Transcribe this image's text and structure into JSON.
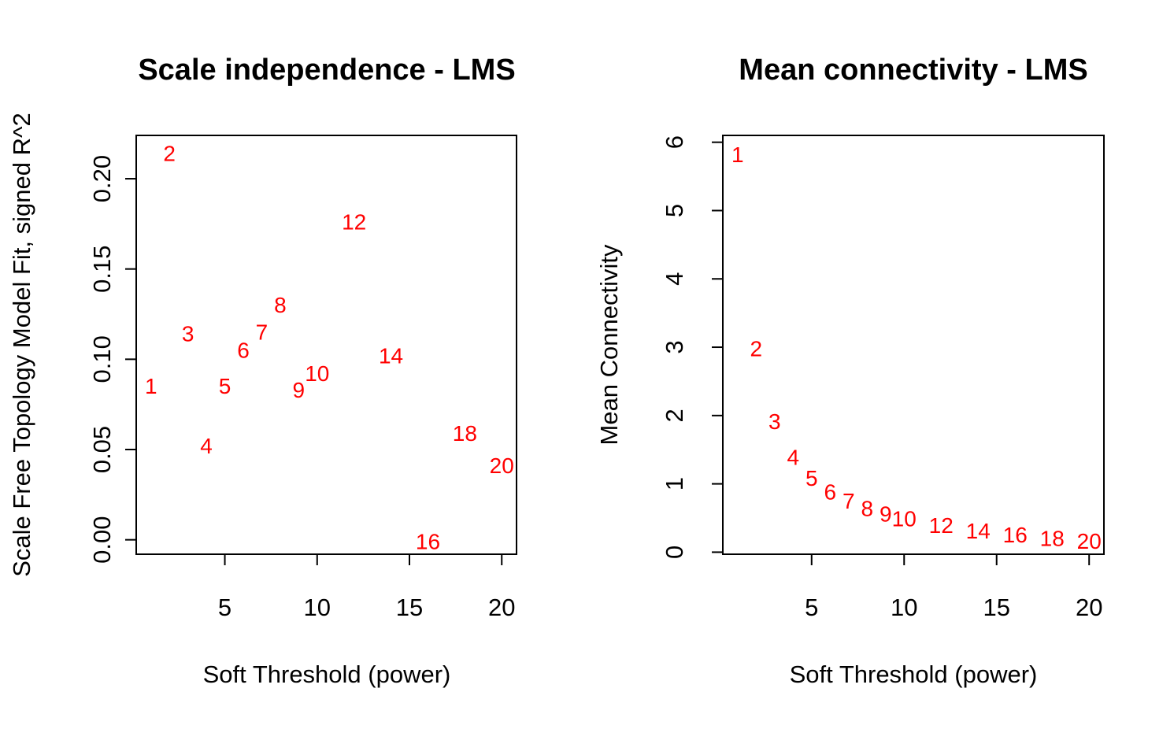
{
  "point_color": "#ff0000",
  "chart_data": [
    {
      "type": "scatter",
      "title": "Scale independence - LMS",
      "xlabel": "Soft Threshold (power)",
      "ylabel": "Scale Free Topology Model Fit, signed R^2",
      "xlim": [
        0.2,
        20.8
      ],
      "ylim": [
        -0.008,
        0.224
      ],
      "xticks": [
        5,
        10,
        15,
        20
      ],
      "yticks": [
        0.0,
        0.05,
        0.1,
        0.15,
        0.2
      ],
      "ytick_labels": [
        "0.00",
        "0.05",
        "0.10",
        "0.15",
        "0.20"
      ],
      "points": [
        {
          "x": 1,
          "y": 0.085,
          "label": "1"
        },
        {
          "x": 2,
          "y": 0.214,
          "label": "2"
        },
        {
          "x": 3,
          "y": 0.114,
          "label": "3"
        },
        {
          "x": 4,
          "y": 0.052,
          "label": "4"
        },
        {
          "x": 5,
          "y": 0.085,
          "label": "5"
        },
        {
          "x": 6,
          "y": 0.105,
          "label": "6"
        },
        {
          "x": 7,
          "y": 0.115,
          "label": "7"
        },
        {
          "x": 8,
          "y": 0.13,
          "label": "8"
        },
        {
          "x": 9,
          "y": 0.083,
          "label": "9"
        },
        {
          "x": 10,
          "y": 0.092,
          "label": "10"
        },
        {
          "x": 12,
          "y": 0.176,
          "label": "12"
        },
        {
          "x": 14,
          "y": 0.102,
          "label": "14"
        },
        {
          "x": 16,
          "y": -0.001,
          "label": "16"
        },
        {
          "x": 18,
          "y": 0.059,
          "label": "18"
        },
        {
          "x": 20,
          "y": 0.041,
          "label": "20"
        }
      ]
    },
    {
      "type": "scatter",
      "title": "Mean connectivity - LMS",
      "xlabel": "Soft Threshold (power)",
      "ylabel": "Mean Connectivity",
      "xlim": [
        0.2,
        20.8
      ],
      "ylim": [
        -0.03,
        6.1
      ],
      "xticks": [
        5,
        10,
        15,
        20
      ],
      "yticks": [
        0,
        1,
        2,
        3,
        4,
        5,
        6
      ],
      "ytick_labels": [
        "0",
        "1",
        "2",
        "3",
        "4",
        "5",
        "6"
      ],
      "points": [
        {
          "x": 1,
          "y": 5.82,
          "label": "1"
        },
        {
          "x": 2,
          "y": 2.98,
          "label": "2"
        },
        {
          "x": 3,
          "y": 1.91,
          "label": "3"
        },
        {
          "x": 4,
          "y": 1.39,
          "label": "4"
        },
        {
          "x": 5,
          "y": 1.08,
          "label": "5"
        },
        {
          "x": 6,
          "y": 0.88,
          "label": "6"
        },
        {
          "x": 7,
          "y": 0.75,
          "label": "7"
        },
        {
          "x": 8,
          "y": 0.64,
          "label": "8"
        },
        {
          "x": 9,
          "y": 0.56,
          "label": "9"
        },
        {
          "x": 10,
          "y": 0.49,
          "label": "10"
        },
        {
          "x": 12,
          "y": 0.39,
          "label": "12"
        },
        {
          "x": 14,
          "y": 0.31,
          "label": "14"
        },
        {
          "x": 16,
          "y": 0.25,
          "label": "16"
        },
        {
          "x": 18,
          "y": 0.2,
          "label": "18"
        },
        {
          "x": 20,
          "y": 0.16,
          "label": "20"
        }
      ]
    }
  ]
}
